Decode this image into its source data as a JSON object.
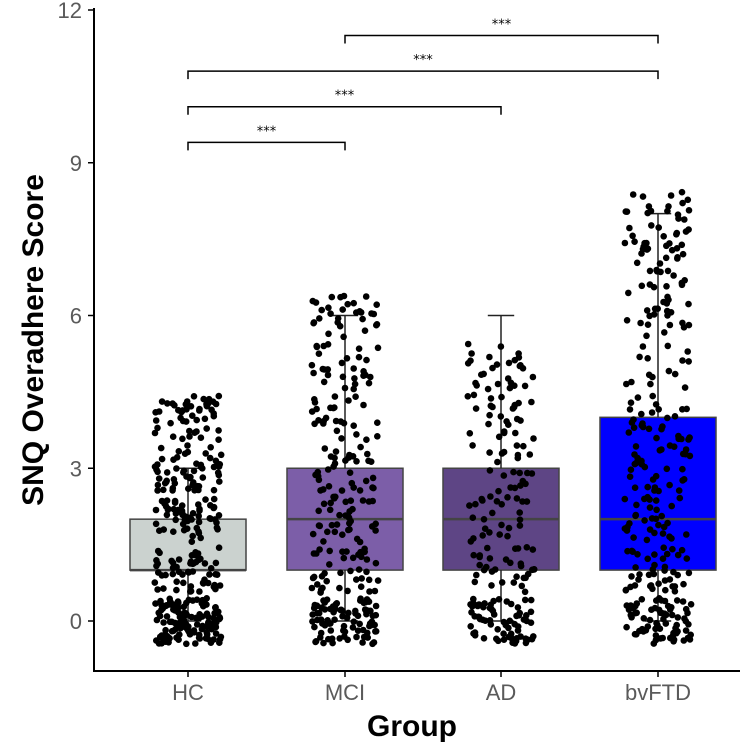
{
  "chart_data": {
    "type": "box",
    "xlabel": "Group",
    "ylabel": "SNQ Overadhere Score",
    "ylim": [
      -1,
      12
    ],
    "yticks": [
      "0",
      "3",
      "6",
      "9",
      "12"
    ],
    "ytick_values": [
      0,
      3,
      6,
      9,
      12
    ],
    "grid": false,
    "categories": [
      "HC",
      "MCI",
      "AD",
      "bvFTD"
    ],
    "groups": [
      {
        "name": "HC",
        "color": "#cbd2cf",
        "min": 0,
        "q1": 1,
        "median": 1,
        "q3": 2,
        "max": 3,
        "jitter_range": [
          -0.5,
          4.8
        ],
        "n_points": 340
      },
      {
        "name": "MCI",
        "color": "#7c5ea8",
        "min": 0,
        "q1": 1,
        "median": 2,
        "q3": 3,
        "max": 6,
        "jitter_range": [
          -0.5,
          6.4
        ],
        "n_points": 280
      },
      {
        "name": "AD",
        "color": "#5e4585",
        "min": 0,
        "q1": 1,
        "median": 2,
        "q3": 3,
        "max": 6,
        "jitter_range": [
          -0.5,
          5.8
        ],
        "n_points": 200
      },
      {
        "name": "bvFTD",
        "color": "#0000ff",
        "min": 0,
        "q1": 1,
        "median": 2,
        "q3": 4,
        "max": 8,
        "jitter_range": [
          -0.5,
          8.8
        ],
        "n_points": 300
      }
    ],
    "significance": [
      {
        "from": "HC",
        "to": "MCI",
        "y": 9.4,
        "label": "***"
      },
      {
        "from": "HC",
        "to": "AD",
        "y": 10.1,
        "label": "***"
      },
      {
        "from": "HC",
        "to": "bvFTD",
        "y": 10.8,
        "label": "***"
      },
      {
        "from": "MCI",
        "to": "bvFTD",
        "y": 11.5,
        "label": "***"
      }
    ]
  }
}
